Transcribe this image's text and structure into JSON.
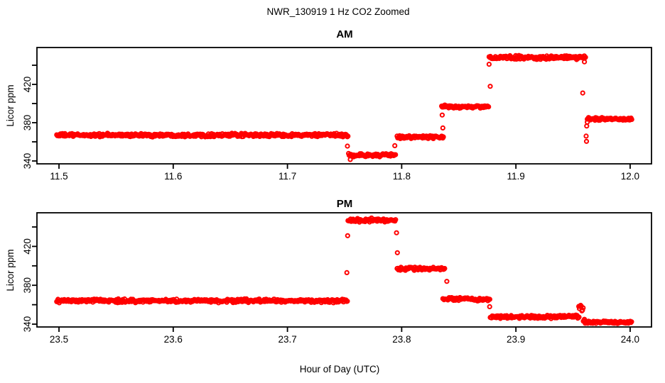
{
  "title": "NWR_130919  1 Hz CO2 Zoomed",
  "chart_data": [
    {
      "type": "scatter",
      "title": "AM",
      "xlabel": "",
      "ylabel": "Licor ppm",
      "marker": {
        "shape": "open-circle",
        "color": "#FF0000"
      },
      "xlim": [
        11.4807,
        12.0187
      ],
      "ylim": [
        337.0,
        458.5
      ],
      "grid": false,
      "xticks": {
        "values": [
          11.5,
          11.6,
          11.7,
          11.8,
          11.9,
          12.0
        ],
        "labels": [
          "11.5",
          "11.6",
          "11.7",
          "11.8",
          "11.9",
          "12.0"
        ]
      },
      "yticks": {
        "values": [
          340,
          360,
          380,
          400,
          420,
          440
        ],
        "labels": [
          "340",
          "",
          "380",
          "",
          "420",
          ""
        ]
      },
      "segments": [
        {
          "t0": 11.498,
          "t1": 11.7535,
          "level": 367.0,
          "sd": 0.8
        },
        {
          "t0": 11.7535,
          "t1": 11.795,
          "level": 346.0,
          "sd": 0.8
        },
        {
          "t0": 11.796,
          "t1": 11.837,
          "level": 365.0,
          "sd": 0.8
        },
        {
          "t0": 11.835,
          "t1": 11.8765,
          "level": 396.5,
          "sd": 0.8
        },
        {
          "t0": 11.8765,
          "t1": 11.961,
          "level": 448.0,
          "sd": 0.9
        },
        {
          "t0": 11.9625,
          "t1": 12.0015,
          "level": 384.0,
          "sd": 0.7
        }
      ],
      "outliers": [
        [
          11.7525,
          355.5
        ],
        [
          11.755,
          341.5
        ],
        [
          11.794,
          356.0
        ],
        [
          11.8355,
          388.0
        ],
        [
          11.836,
          374.5
        ],
        [
          11.8765,
          441.0
        ],
        [
          11.8775,
          418.0
        ],
        [
          11.9585,
          411.0
        ],
        [
          11.96,
          443.5
        ],
        [
          11.9615,
          366.0
        ],
        [
          11.9618,
          360.5
        ],
        [
          11.962,
          376.5
        ],
        [
          11.9625,
          380.5
        ]
      ]
    },
    {
      "type": "scatter",
      "title": "PM",
      "xlabel": "Hour of Day (UTC)",
      "ylabel": "Licor ppm",
      "marker": {
        "shape": "open-circle",
        "color": "#FF0000"
      },
      "xlim": [
        23.4807,
        24.0187
      ],
      "ylim": [
        337.1,
        454.6
      ],
      "grid": false,
      "xticks": {
        "values": [
          23.5,
          23.6,
          23.7,
          23.8,
          23.9,
          24.0
        ],
        "labels": [
          "23.5",
          "23.6",
          "23.7",
          "23.8",
          "23.9",
          "24.0"
        ]
      },
      "yticks": {
        "values": [
          340,
          360,
          380,
          400,
          420,
          440
        ],
        "labels": [
          "340",
          "",
          "380",
          "",
          "420",
          ""
        ]
      },
      "segments": [
        {
          "t0": 23.498,
          "t1": 23.7525,
          "level": 364.0,
          "sd": 0.8
        },
        {
          "t0": 23.753,
          "t1": 23.795,
          "level": 447.0,
          "sd": 0.9
        },
        {
          "t0": 23.796,
          "t1": 23.838,
          "level": 397.0,
          "sd": 0.8
        },
        {
          "t0": 23.836,
          "t1": 23.8775,
          "level": 365.5,
          "sd": 0.9
        },
        {
          "t0": 23.8775,
          "t1": 23.9555,
          "level": 347.5,
          "sd": 0.8
        },
        {
          "t0": 23.955,
          "t1": 23.959,
          "level": 356.0,
          "sd": 2.4
        },
        {
          "t0": 23.959,
          "t1": 24.0015,
          "level": 342.0,
          "sd": 0.7
        }
      ],
      "outliers": [
        [
          23.752,
          393.0
        ],
        [
          23.7527,
          431.0
        ],
        [
          23.7955,
          434.0
        ],
        [
          23.7962,
          413.5
        ],
        [
          23.8395,
          384.0
        ],
        [
          23.877,
          358.0
        ],
        [
          23.96,
          345.0
        ]
      ]
    }
  ]
}
